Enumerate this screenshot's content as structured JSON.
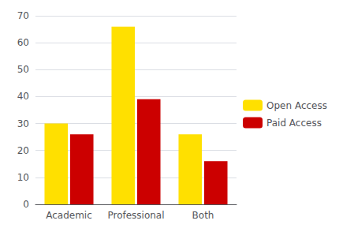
{
  "chart_data": {
    "type": "bar",
    "categories": [
      "Academic",
      "Professional",
      "Both"
    ],
    "series": [
      {
        "name": "Open Access",
        "color": "#FFE000",
        "values": [
          30,
          66,
          26
        ]
      },
      {
        "name": "Paid Access",
        "color": "#CC0000",
        "values": [
          26,
          39,
          16
        ]
      }
    ],
    "ylim": [
      0,
      70
    ],
    "yticks": [
      0,
      10,
      20,
      30,
      40,
      50,
      60,
      70
    ],
    "grid": true,
    "legend": "right"
  }
}
